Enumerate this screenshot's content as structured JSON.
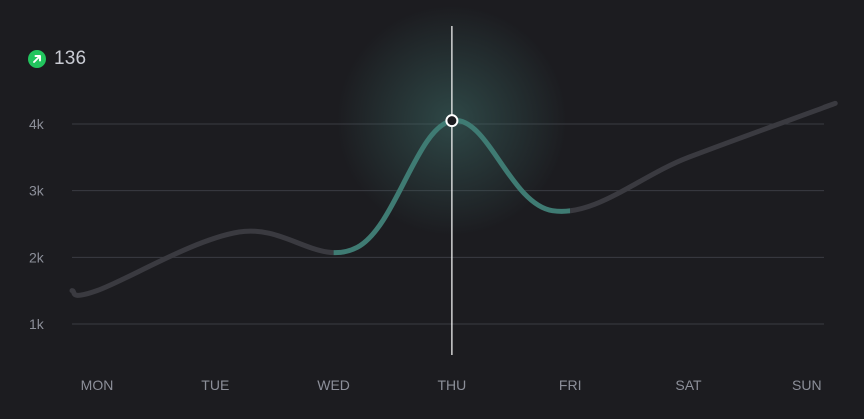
{
  "badge": {
    "value": "136",
    "icon": "arrow-up-right-icon",
    "color": "#22c55e"
  },
  "colors": {
    "background": "#1c1c20",
    "grid": "#3a3b42",
    "line_dim": "#3a3a40",
    "line_active": "#3f7b73",
    "cursor": "#ffffff"
  },
  "chart_data": {
    "type": "line",
    "categories": [
      "MON",
      "TUE",
      "WED",
      "THU",
      "FRI",
      "SAT",
      "SUN"
    ],
    "series": [
      {
        "values": [
          1500,
          2380,
          2150,
          4050,
          2700,
          3500,
          4250
        ]
      }
    ],
    "x_points": [
      0,
      1.2,
      2.2,
      3,
      3.85,
      5,
      6.15
    ],
    "yticks": [
      1000,
      2000,
      3000,
      4000
    ],
    "ytick_labels": [
      "1k",
      "2k",
      "3k",
      "4k"
    ],
    "ylim": [
      500,
      4800
    ],
    "highlight": {
      "category": "THU",
      "value": 4050,
      "range": [
        2,
        4
      ]
    },
    "grid": true,
    "legend": "none"
  }
}
